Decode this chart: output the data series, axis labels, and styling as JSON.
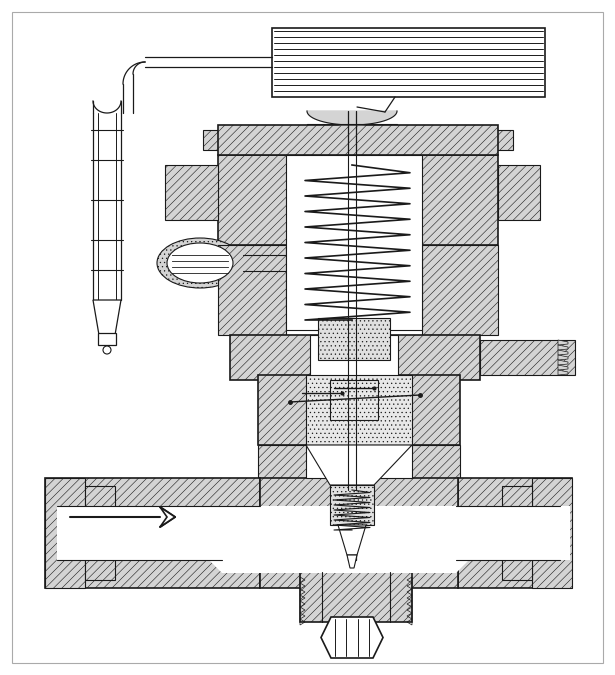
{
  "bg": "#ffffff",
  "lc": "#1a1a1a",
  "lw": 0.8,
  "lw2": 1.2,
  "HC": "#d4d4d4",
  "WC": "#ffffff",
  "dot_fc": "#c8c8c8"
}
